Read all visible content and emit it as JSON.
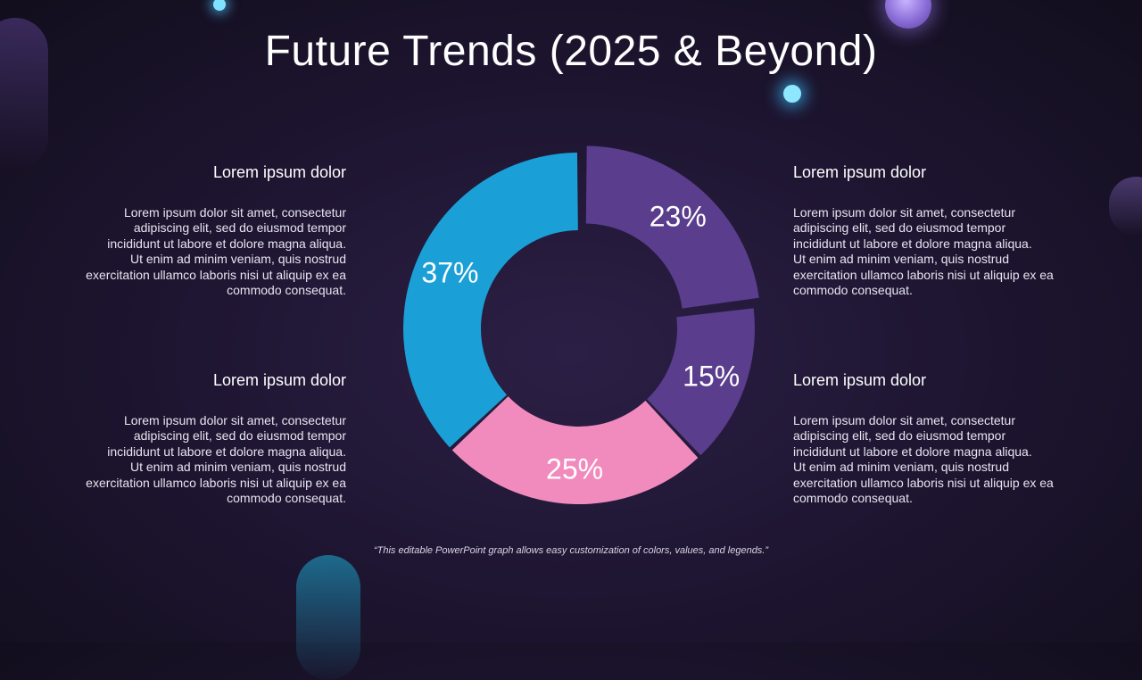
{
  "title": "Future Trends (2025 & Beyond)",
  "blocks": [
    {
      "heading": "Lorem ipsum dolor",
      "text1": "Lorem ipsum dolor sit amet, consectetur adipiscing elit, sed do eiusmod tempor incididunt ut labore et dolore magna aliqua.",
      "text2": "Ut enim ad minim veniam, quis nostrud exercitation ullamco laboris nisi ut aliquip ex ea commodo consequat."
    },
    {
      "heading": "Lorem ipsum dolor",
      "text1": "Lorem ipsum dolor sit amet, consectetur adipiscing elit, sed do eiusmod tempor incididunt ut labore et dolore magna aliqua.",
      "text2": "Ut enim ad minim veniam, quis nostrud exercitation ullamco laboris nisi ut aliquip ex ea commodo consequat."
    },
    {
      "heading": "Lorem ipsum dolor",
      "text1": "Lorem ipsum dolor sit amet, consectetur adipiscing elit, sed do eiusmod tempor incididunt ut labore et dolore magna aliqua.",
      "text2": "Ut enim ad minim veniam, quis nostrud exercitation ullamco laboris nisi ut aliquip ex ea commodo consequat."
    },
    {
      "heading": "Lorem ipsum dolor",
      "text1": "Lorem ipsum dolor sit amet, consectetur adipiscing elit, sed do eiusmod tempor incididunt ut labore et dolore magna aliqua.",
      "text2": "Ut enim ad minim veniam, quis nostrud exercitation ullamco laboris nisi ut aliquip ex ea commodo consequat."
    }
  ],
  "footnote": "“This editable PowerPoint graph allows easy customization of colors, values, and legends.”",
  "chart_data": {
    "type": "pie",
    "subtype": "donut",
    "values": [
      23,
      15,
      25,
      37
    ],
    "labels": [
      "23%",
      "15%",
      "25%",
      "37%"
    ],
    "colors": [
      "#5a3d8c",
      "#5a3d8c",
      "#f28bbd",
      "#1aa0d6"
    ],
    "exploded_slice": 0,
    "title": "",
    "legend": "none"
  }
}
